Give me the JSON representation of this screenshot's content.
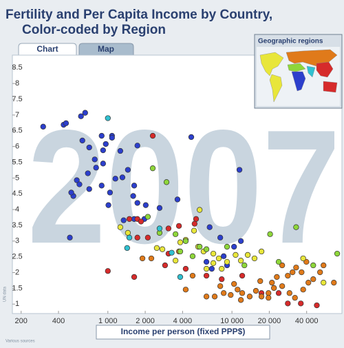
{
  "chart_data": {
    "type": "scatter",
    "title": "Fertility and Per Capita Income by Country,",
    "subtitle": "Color-coded by Region",
    "tabs": [
      "Chart",
      "Map"
    ],
    "inset_title": "Geographic regions",
    "watermark": "2007",
    "x_label": "Income per person (fixed PPP$)",
    "y_source": "UN data",
    "x_source": "Various sources",
    "xlog": true,
    "grid": false,
    "xlim": [
      170,
      77000
    ],
    "ylim": [
      0.7,
      8.9
    ],
    "xticks": [
      200,
      400,
      {
        "value": 1000,
        "label": "1 000"
      },
      {
        "value": 2000,
        "label": "2 000"
      },
      {
        "value": 4000,
        "label": "4 000"
      },
      {
        "value": 10000,
        "label": "10 000"
      },
      {
        "value": 20000,
        "label": "20 000"
      },
      {
        "value": 40000,
        "label": "40 000"
      }
    ],
    "yticks": [
      1,
      1.5,
      2,
      2.5,
      3,
      3.5,
      4,
      4.5,
      5,
      5.5,
      6,
      6.5,
      7,
      7.5,
      8,
      8.5
    ],
    "series": [
      {
        "color": "#2c3fcc",
        "x": [
          301,
          440,
          460,
          607,
          656,
          891,
          1080,
          1080,
          623,
          708,
          962,
          915,
          1260,
          1730,
          4700,
          784,
          915,
          690,
          804,
          1450,
          1310,
          1150,
          562,
          590,
          527,
          507,
          708,
          891,
          1040,
          1630,
          1600,
          1730,
          2020,
          1010,
          2610,
          3640,
          11500,
          494,
          1340,
          1630,
          1970,
          6610,
          8050,
          11800,
          10400,
          8580,
          6230,
          6880,
          9130
        ],
        "values": [
          6.63,
          6.69,
          6.74,
          6.96,
          7.07,
          6.34,
          6.34,
          6.28,
          6.19,
          5.97,
          6.08,
          5.88,
          5.86,
          6.03,
          6.3,
          5.59,
          5.46,
          5.15,
          5.33,
          5.26,
          5.02,
          4.98,
          4.93,
          4.8,
          4.43,
          4.54,
          4.65,
          4.76,
          4.54,
          4.76,
          4.43,
          4.21,
          4.14,
          4.14,
          4.05,
          4.32,
          5.26,
          3.11,
          3.66,
          3.7,
          3.7,
          3.44,
          3.11,
          3.0,
          2.82,
          2.52,
          2.34,
          2.12,
          2.23
        ]
      },
      {
        "color": "#d62b2b",
        "x": [
          2300,
          1730,
          1850,
          1490,
          1730,
          2100,
          3080,
          5140,
          5000,
          2890,
          1630,
          1000,
          4240,
          6230,
          8270,
          12100,
          17300,
          23800,
          28200,
          35900,
          48300,
          3080,
          3740
        ],
        "values": [
          6.34,
          3.7,
          3.62,
          3.7,
          3.11,
          3.11,
          2.6,
          3.7,
          3.55,
          2.23,
          1.86,
          2.05,
          2.12,
          1.9,
          1.79,
          1.9,
          1.35,
          1.35,
          1.02,
          1.02,
          0.96,
          3.4,
          3.48
        ]
      },
      {
        "color": "#e07a1a",
        "x": [
          1900,
          2240,
          3740,
          4240,
          6230,
          7260,
          8580,
          9770,
          11100,
          12100,
          13900,
          15600,
          17300,
          19700,
          21000,
          23000,
          25400,
          28200,
          30800,
          32900,
          36400,
          39800,
          37500,
          41300,
          45200,
          51300,
          66300,
          54700,
          25400,
          16900,
          21800,
          29100,
          32200,
          11800,
          8050,
          4820,
          10400,
          19700
        ],
        "values": [
          2.45,
          2.45,
          2.67,
          1.46,
          1.24,
          1.24,
          1.35,
          1.29,
          1.46,
          1.35,
          1.24,
          1.42,
          1.24,
          1.35,
          1.68,
          1.86,
          1.57,
          1.9,
          2.01,
          2.16,
          2.01,
          2.34,
          1.46,
          1.68,
          1.79,
          2.01,
          1.68,
          2.23,
          2.23,
          1.73,
          1.51,
          1.35,
          1.2,
          1.13,
          1.57,
          1.9,
          1.64,
          1.2
        ]
      },
      {
        "color": "#e8e63a",
        "x": [
          2480,
          2750,
          3830,
          4240,
          5340,
          5910,
          7080,
          7840,
          9130,
          10700,
          11800,
          13400,
          17300,
          7080,
          6230,
          8270,
          3510,
          4950,
          5490,
          1260,
          1450,
          15200,
          54700,
          37500
        ],
        "values": [
          2.78,
          2.74,
          2.96,
          3.04,
          2.82,
          2.67,
          2.6,
          2.45,
          2.34,
          2.56,
          2.38,
          2.56,
          2.67,
          2.3,
          2.12,
          2.12,
          2.38,
          3.33,
          3.99,
          3.44,
          3.26,
          2.45,
          1.68,
          2.45
        ]
      },
      {
        "color": "#8ed63a",
        "x": [
          2300,
          2970,
          2100,
          2610,
          3510,
          4240,
          5490,
          6230,
          9130,
          20300,
          32900,
          23800,
          45200,
          70500,
          12600,
          4820,
          3830
        ],
        "values": [
          5.31,
          4.87,
          3.77,
          3.26,
          3.22,
          3.0,
          2.82,
          2.74,
          2.82,
          3.22,
          3.44,
          2.34,
          2.23,
          2.6,
          2.23,
          2.52,
          2.67
        ]
      },
      {
        "color": "#30c0d0",
        "x": [
          1000,
          1490,
          1430,
          2610,
          3830,
          3270
        ],
        "values": [
          6.9,
          3.11,
          2.78,
          3.4,
          1.86,
          2.63
        ]
      }
    ]
  }
}
